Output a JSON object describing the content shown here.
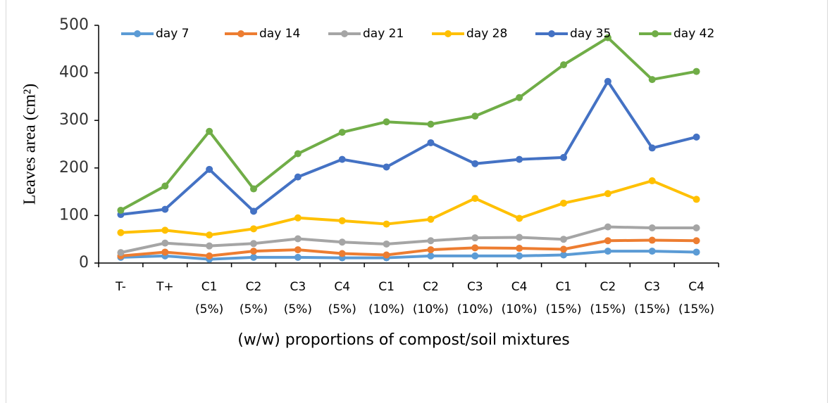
{
  "chart_data": {
    "type": "line",
    "x_label": "(w/w) proportions of compost/soil mixtures",
    "y_label": "Leaves area (cm²)",
    "categories": [
      "T-",
      "T+",
      "C1 (5%)",
      "C2 (5%)",
      "C3 (5%)",
      "C4 (5%)",
      "C1 (10%)",
      "C2 (10%)",
      "C3 (10%)",
      "C4 (10%)",
      "C1 (15%)",
      "C2 (15%)",
      "C3 (15%)",
      "C4 (15%)"
    ],
    "series": [
      {
        "name": "day 7",
        "color": "#5b9bd5",
        "values": [
          12,
          15,
          8,
          12,
          12,
          11,
          11,
          15,
          15,
          15,
          17,
          25,
          25,
          23
        ]
      },
      {
        "name": "day 14",
        "color": "#ed7d31",
        "values": [
          15,
          23,
          15,
          25,
          28,
          20,
          17,
          28,
          32,
          31,
          29,
          47,
          48,
          47
        ]
      },
      {
        "name": "day 21",
        "color": "#a5a5a5",
        "values": [
          22,
          42,
          36,
          41,
          51,
          44,
          40,
          47,
          53,
          54,
          50,
          76,
          74,
          74
        ]
      },
      {
        "name": "day 28",
        "color": "#ffc000",
        "values": [
          64,
          69,
          59,
          72,
          95,
          89,
          82,
          92,
          136,
          94,
          126,
          146,
          173,
          134
        ]
      },
      {
        "name": "day 35",
        "color": "#4472c4",
        "values": [
          102,
          113,
          197,
          109,
          181,
          218,
          202,
          253,
          209,
          218,
          222,
          382,
          242,
          265
        ]
      },
      {
        "name": "day 42",
        "color": "#70ad47",
        "values": [
          111,
          162,
          277,
          156,
          230,
          275,
          297,
          292,
          309,
          348,
          417,
          474,
          386,
          403
        ]
      }
    ],
    "ylim": [
      0,
      500
    ],
    "yticks": [
      0,
      100,
      200,
      300,
      400,
      500
    ],
    "legend": "top"
  }
}
